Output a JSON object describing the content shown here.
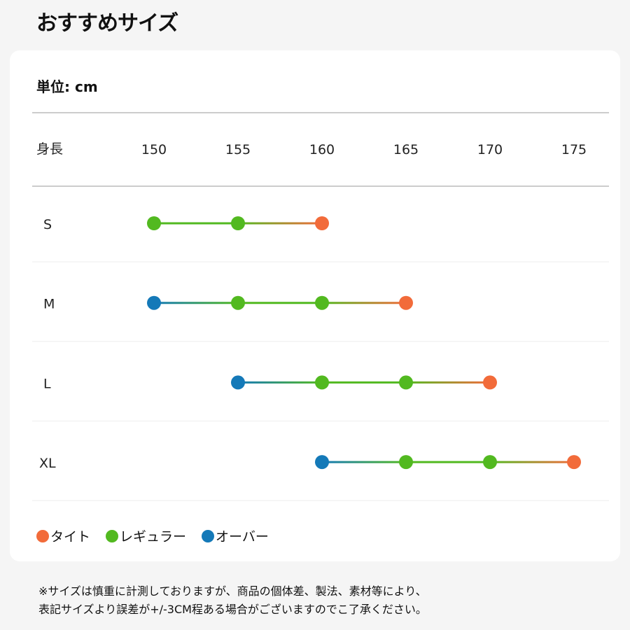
{
  "title": "おすすめサイズ",
  "unit_label": "単位: cm",
  "chart_data": {
    "type": "dot-range",
    "row_header": "身長",
    "x_ticks": [
      150,
      155,
      160,
      165,
      170,
      175
    ],
    "colors": {
      "tight": "#f26b3a",
      "regular": "#52b920",
      "over": "#1479b8"
    },
    "rows": [
      {
        "size": "S",
        "points": [
          {
            "x": 150,
            "fit": "regular"
          },
          {
            "x": 155,
            "fit": "regular"
          },
          {
            "x": 160,
            "fit": "tight"
          }
        ]
      },
      {
        "size": "M",
        "points": [
          {
            "x": 150,
            "fit": "over"
          },
          {
            "x": 155,
            "fit": "regular"
          },
          {
            "x": 160,
            "fit": "regular"
          },
          {
            "x": 165,
            "fit": "tight"
          }
        ]
      },
      {
        "size": "L",
        "points": [
          {
            "x": 155,
            "fit": "over"
          },
          {
            "x": 160,
            "fit": "regular"
          },
          {
            "x": 165,
            "fit": "regular"
          },
          {
            "x": 170,
            "fit": "tight"
          }
        ]
      },
      {
        "size": "XL",
        "points": [
          {
            "x": 160,
            "fit": "over"
          },
          {
            "x": 165,
            "fit": "regular"
          },
          {
            "x": 170,
            "fit": "regular"
          },
          {
            "x": 175,
            "fit": "tight"
          }
        ]
      }
    ],
    "legend": [
      {
        "key": "tight",
        "label": "タイト"
      },
      {
        "key": "regular",
        "label": "レギュラー"
      },
      {
        "key": "over",
        "label": "オーバー"
      }
    ]
  },
  "note_lines": [
    "※サイズは慎重に計測しておりますが、商品の個体差、製法、素材等により、",
    "表記サイズより誤差が+/-3CM程ある場合がございますのでこ了承ください。"
  ]
}
